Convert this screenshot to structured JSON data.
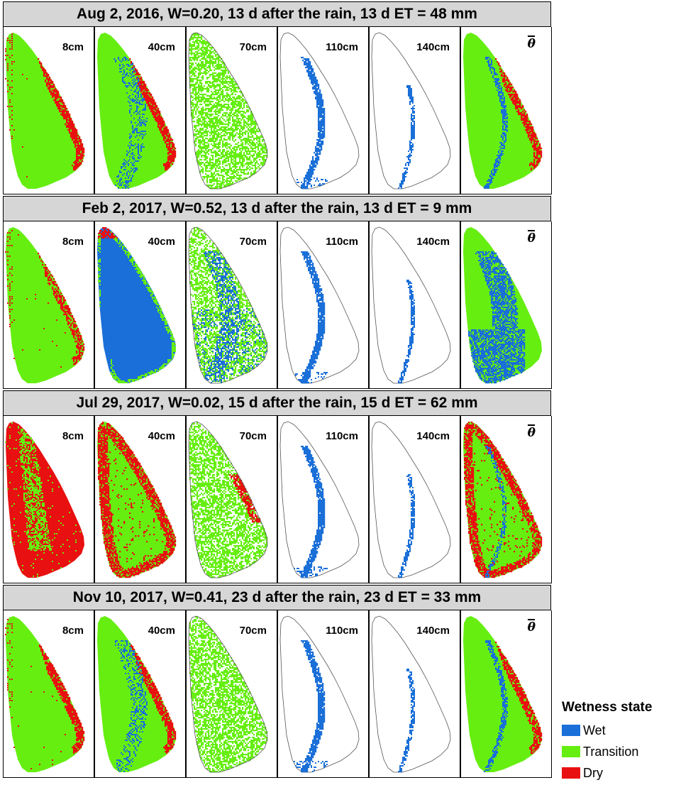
{
  "rows": [
    {
      "title": "Aug 2, 2016, W=0.20, 13 d after the rain, 13 d ET = 48 mm",
      "panels": [
        {
          "label": "8cm",
          "state": "dry-edge"
        },
        {
          "label": "40cm",
          "state": "wet-channel-dry-edge"
        },
        {
          "label": "70cm",
          "state": "sparse-transition"
        },
        {
          "label": "110cm",
          "state": "channel-only"
        },
        {
          "label": "140cm",
          "state": "thin-channel"
        },
        {
          "label": "θ",
          "state": "mean-dry-edge"
        }
      ]
    },
    {
      "title": "Feb 2, 2017, W=0.52, 13 d after the rain, 13 d ET = 9 mm",
      "panels": [
        {
          "label": "8cm",
          "state": "dry-edge-light"
        },
        {
          "label": "40cm",
          "state": "mostly-wet"
        },
        {
          "label": "70cm",
          "state": "mixed-wet"
        },
        {
          "label": "110cm",
          "state": "channel-only"
        },
        {
          "label": "140cm",
          "state": "thin-channel"
        },
        {
          "label": "θ",
          "state": "mean-wet"
        }
      ]
    },
    {
      "title": "Jul 29, 2017, W=0.02, 15 d after the rain, 15 d ET = 62 mm",
      "panels": [
        {
          "label": "8cm",
          "state": "mostly-dry"
        },
        {
          "label": "40cm",
          "state": "dry-edge-heavy"
        },
        {
          "label": "70cm",
          "state": "sparse-transition-dry"
        },
        {
          "label": "110cm",
          "state": "channel-only"
        },
        {
          "label": "140cm",
          "state": "thin-channel"
        },
        {
          "label": "θ",
          "state": "mean-dry-heavy"
        }
      ]
    },
    {
      "title": "Nov 10, 2017, W=0.41, 23 d after the rain, 23 d ET = 33 mm",
      "panels": [
        {
          "label": "8cm",
          "state": "dry-edge"
        },
        {
          "label": "40cm",
          "state": "wet-channel-dry-edge"
        },
        {
          "label": "70cm",
          "state": "sparse-transition"
        },
        {
          "label": "110cm",
          "state": "channel-only"
        },
        {
          "label": "140cm",
          "state": "thin-channel"
        },
        {
          "label": "θ",
          "state": "mean-dry-edge"
        }
      ]
    }
  ],
  "legend": {
    "title": "Wetness state",
    "items": [
      {
        "label": "Wet",
        "color": "#1a6fd8"
      },
      {
        "label": "Transition",
        "color": "#66ee11"
      },
      {
        "label": "Dry",
        "color": "#e81010"
      }
    ]
  },
  "colors": {
    "wet": "#1a6fd8",
    "transition": "#66ee11",
    "dry": "#e81010",
    "outline": "#555555"
  }
}
